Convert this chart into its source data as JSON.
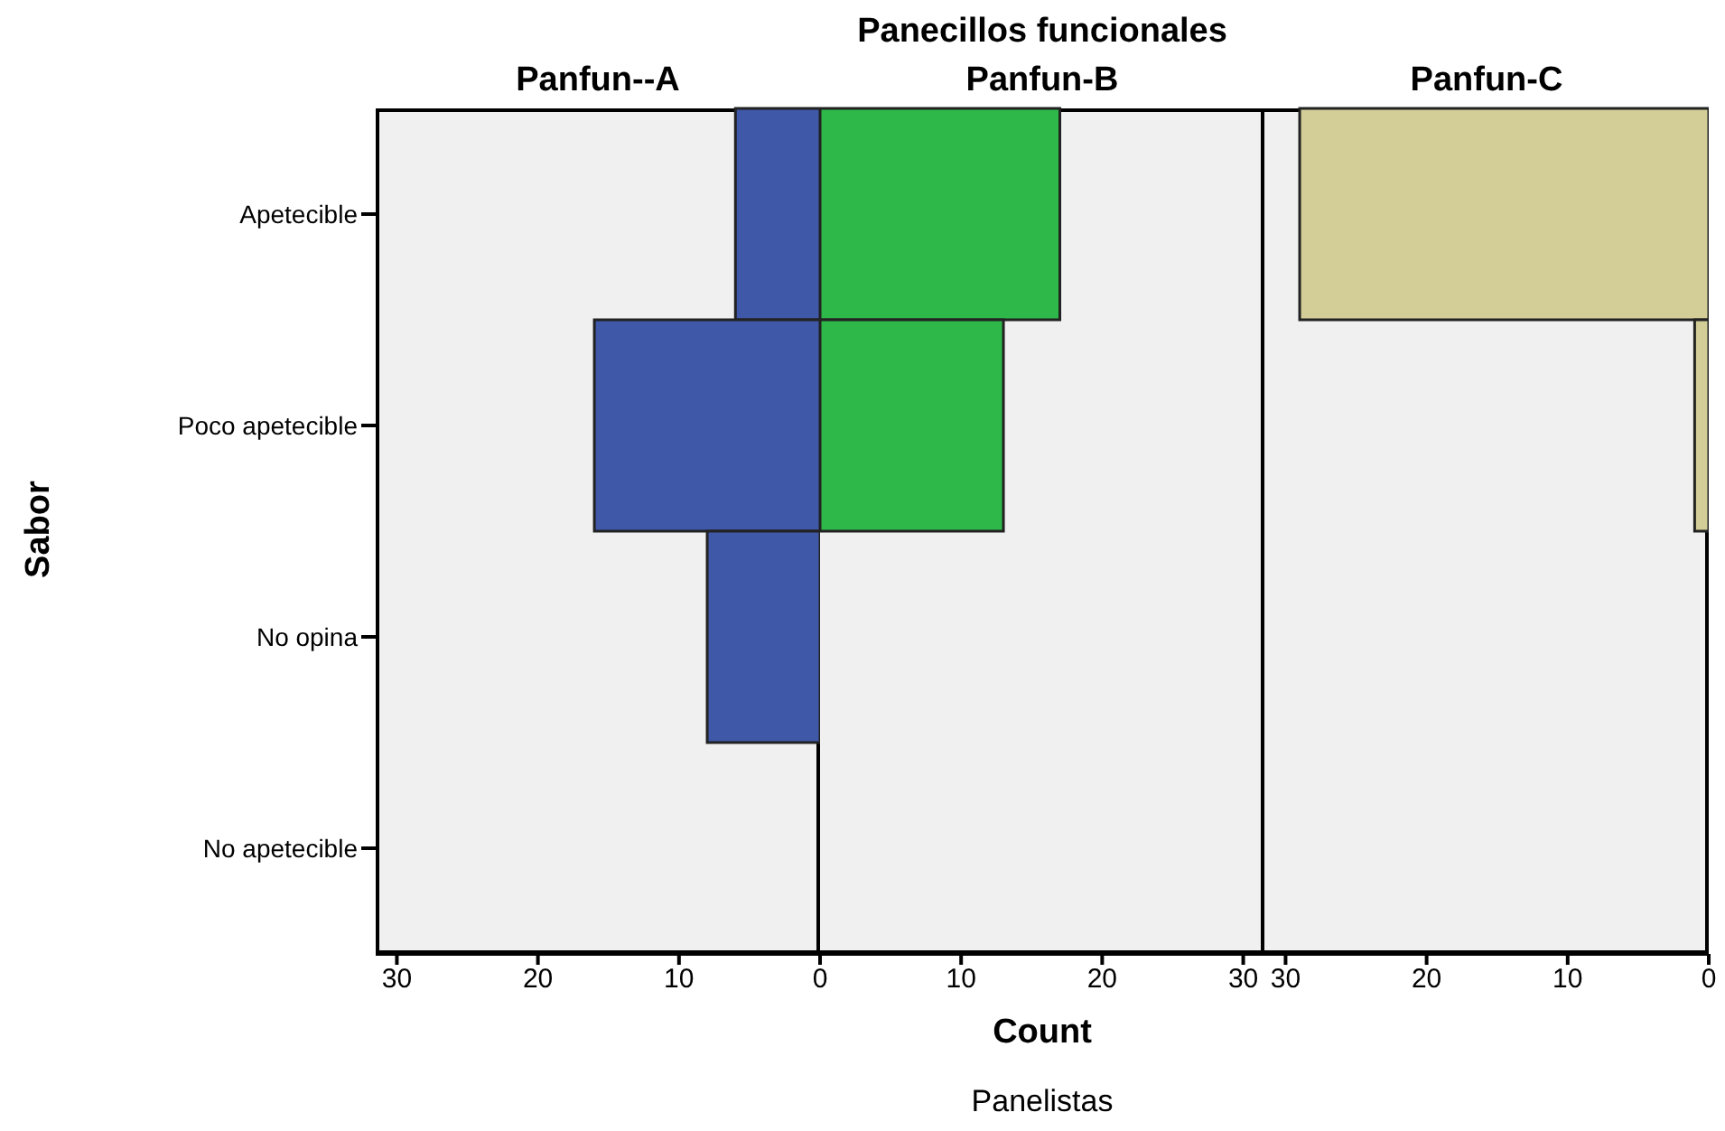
{
  "chart_data": [
    {
      "type": "bar",
      "orientation": "horizontal",
      "title": "Panfun--A",
      "ylabel": "Sabor",
      "categories": [
        "Apetecible",
        "Poco apetecible",
        "No opina",
        "No apetecible"
      ],
      "series": [
        {
          "color": "#3f58a8",
          "values": [
            6,
            16,
            8,
            0
          ]
        }
      ],
      "xlim": [
        31.5,
        0
      ],
      "xticks": [
        30,
        20,
        10,
        0
      ]
    },
    {
      "type": "bar",
      "orientation": "horizontal",
      "title": "Panfun-B",
      "xlabel": "Count",
      "annotations": [
        "Panecillos funcionales",
        "Panelistas"
      ],
      "categories": [
        null,
        null,
        null,
        null
      ],
      "series": [
        {
          "color": "#2eb84a",
          "values": [
            17,
            13,
            0,
            0
          ]
        }
      ],
      "xlim": [
        0,
        31.5
      ],
      "xticks": [
        {
          "value": 0,
          "label": null
        },
        10,
        20,
        30
      ],
      "tick_labels": "x"
    },
    {
      "type": "bar",
      "orientation": "horizontal",
      "title": "Panfun-C",
      "categories": [
        null,
        null,
        null,
        null
      ],
      "series": [
        {
          "color": "#d3cd98",
          "values": [
            29,
            1,
            0,
            0
          ]
        }
      ],
      "xlim": [
        31.5,
        0
      ],
      "xticks": [
        30,
        20,
        10,
        0
      ],
      "tick_labels": "x"
    }
  ]
}
